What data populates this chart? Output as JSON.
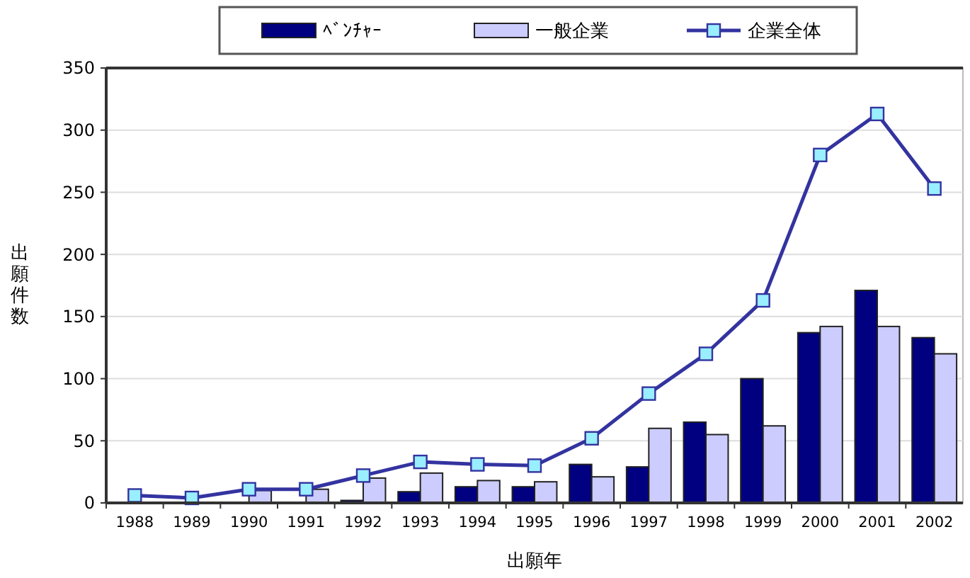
{
  "chart_data": {
    "type": "bar",
    "xlabel": "出願年",
    "ylabel": "出願件数",
    "categories": [
      "1988",
      "1989",
      "1990",
      "1991",
      "1992",
      "1993",
      "1994",
      "1995",
      "1996",
      "1997",
      "1998",
      "1999",
      "2000",
      "2001",
      "2002"
    ],
    "series": [
      {
        "name": "ﾍﾞﾝﾁｬｰ",
        "color": "#000080",
        "values": [
          null,
          null,
          null,
          0,
          2,
          9,
          13,
          13,
          31,
          29,
          65,
          100,
          137,
          171,
          133
        ]
      },
      {
        "name": "一般企業",
        "color": "#ccccff",
        "values": [
          null,
          null,
          10,
          11,
          20,
          24,
          18,
          17,
          21,
          60,
          55,
          62,
          142,
          142,
          120
        ]
      },
      {
        "name": "企業全体",
        "type": "line",
        "color": "#3333a0",
        "marker": "square",
        "values": [
          6,
          4,
          11,
          11,
          22,
          33,
          31,
          30,
          52,
          88,
          120,
          163,
          280,
          313,
          253
        ]
      }
    ],
    "ylim": [
      0,
      350
    ],
    "yticks": [
      0,
      50,
      100,
      150,
      200,
      250,
      300,
      350
    ],
    "grid": "y",
    "legend": "top"
  }
}
